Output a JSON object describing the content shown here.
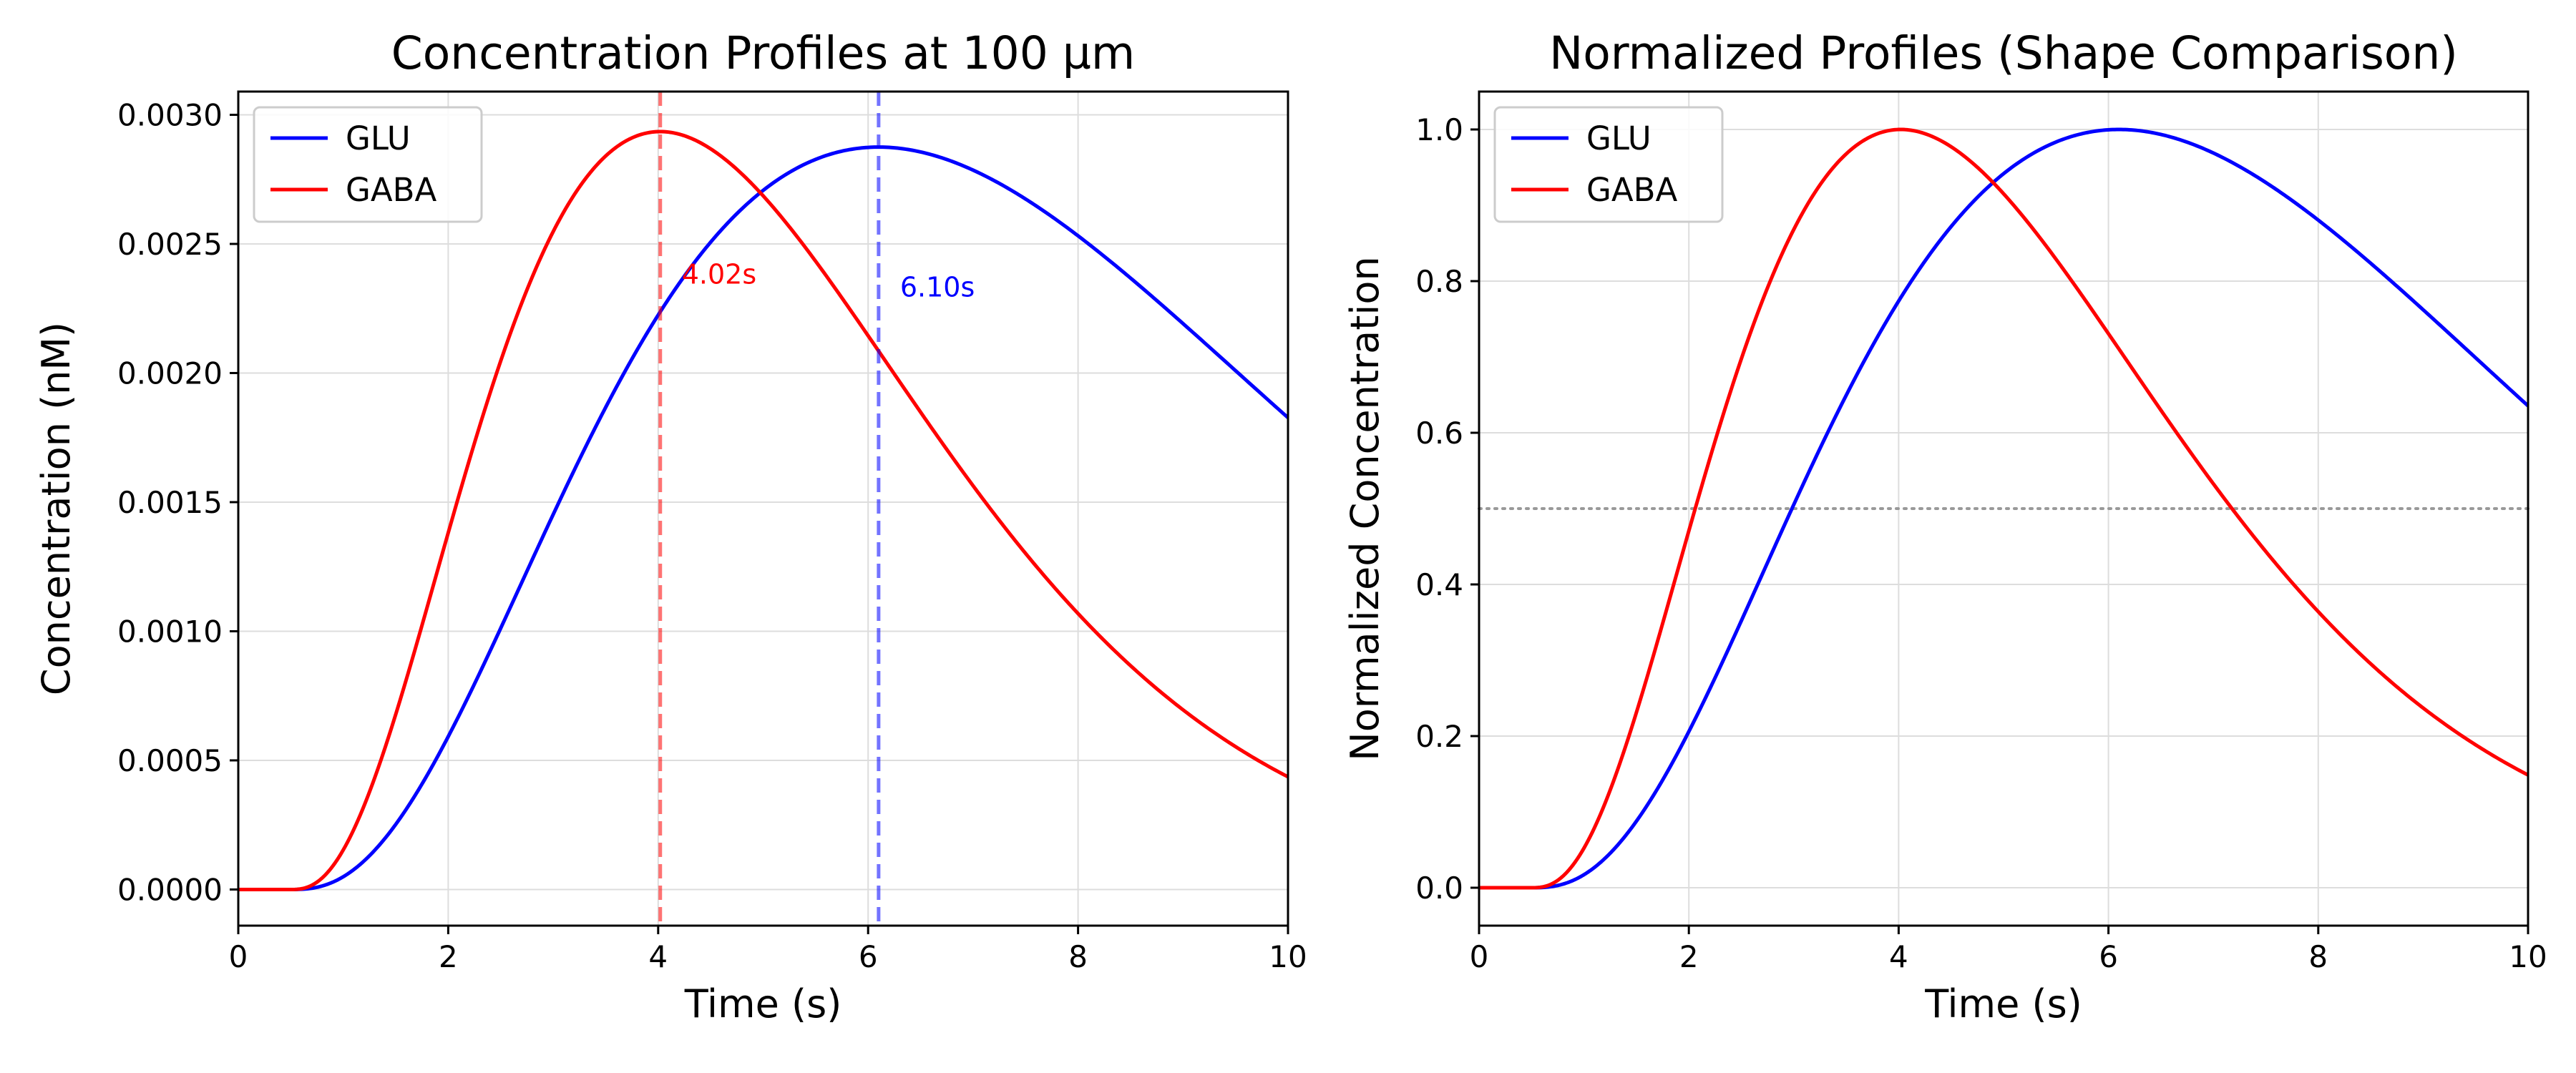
{
  "colors": {
    "glu": "#0000ff",
    "gaba": "#ff0000",
    "grid": "#dddddd",
    "threshold": "#999999"
  },
  "chart_data": [
    {
      "type": "line",
      "title": "Concentration Profiles at 100 µm",
      "xlabel": "Time (s)",
      "ylabel": "Concentration (nM)",
      "xlim": [
        0,
        10
      ],
      "ylim": [
        -0.00014,
        0.00309
      ],
      "xticks": [
        0,
        2,
        4,
        6,
        8,
        10
      ],
      "xtick_labels": [
        "0",
        "2",
        "4",
        "6",
        "8",
        "10"
      ],
      "yticks": [
        0,
        0.0005,
        0.001,
        0.0015,
        0.002,
        0.0025,
        0.003
      ],
      "ytick_labels": [
        "0.0000",
        "0.0005",
        "0.0010",
        "0.0015",
        "0.0020",
        "0.0025",
        "0.0030"
      ],
      "grid": true,
      "legend": "top-left",
      "series": [
        {
          "name": "GLU",
          "color": "#0000ff",
          "peak_time": 6.1,
          "peak_value": 0.002875,
          "onset": 0.5
        },
        {
          "name": "GABA",
          "color": "#ff0000",
          "peak_time": 4.02,
          "peak_value": 0.002935,
          "onset": 0.5
        }
      ],
      "peak_lines": [
        {
          "x": 4.02,
          "color": "#ff0000",
          "label": "4.02s",
          "label_y": 0.00238
        },
        {
          "x": 6.1,
          "color": "#0000ff",
          "label": "6.10s",
          "label_y": 0.00233
        }
      ]
    },
    {
      "type": "line",
      "title": "Normalized Profiles (Shape Comparison)",
      "xlabel": "Time (s)",
      "ylabel": "Normalized Concentration",
      "xlim": [
        0,
        10
      ],
      "ylim": [
        -0.05,
        1.05
      ],
      "xticks": [
        0,
        2,
        4,
        6,
        8,
        10
      ],
      "xtick_labels": [
        "0",
        "2",
        "4",
        "6",
        "8",
        "10"
      ],
      "yticks": [
        0,
        0.2,
        0.4,
        0.6,
        0.8,
        1.0
      ],
      "ytick_labels": [
        "0.0",
        "0.2",
        "0.4",
        "0.6",
        "0.8",
        "1.0"
      ],
      "grid": true,
      "legend": "top-left",
      "series": [
        {
          "name": "GLU",
          "color": "#0000ff",
          "peak_time": 6.1,
          "peak_value": 1.0,
          "onset": 0.5
        },
        {
          "name": "GABA",
          "color": "#ff0000",
          "peak_time": 4.02,
          "peak_value": 1.0,
          "onset": 0.5
        }
      ],
      "hline": {
        "y": 0.5,
        "color": "#999999",
        "style": "dotted"
      }
    }
  ]
}
